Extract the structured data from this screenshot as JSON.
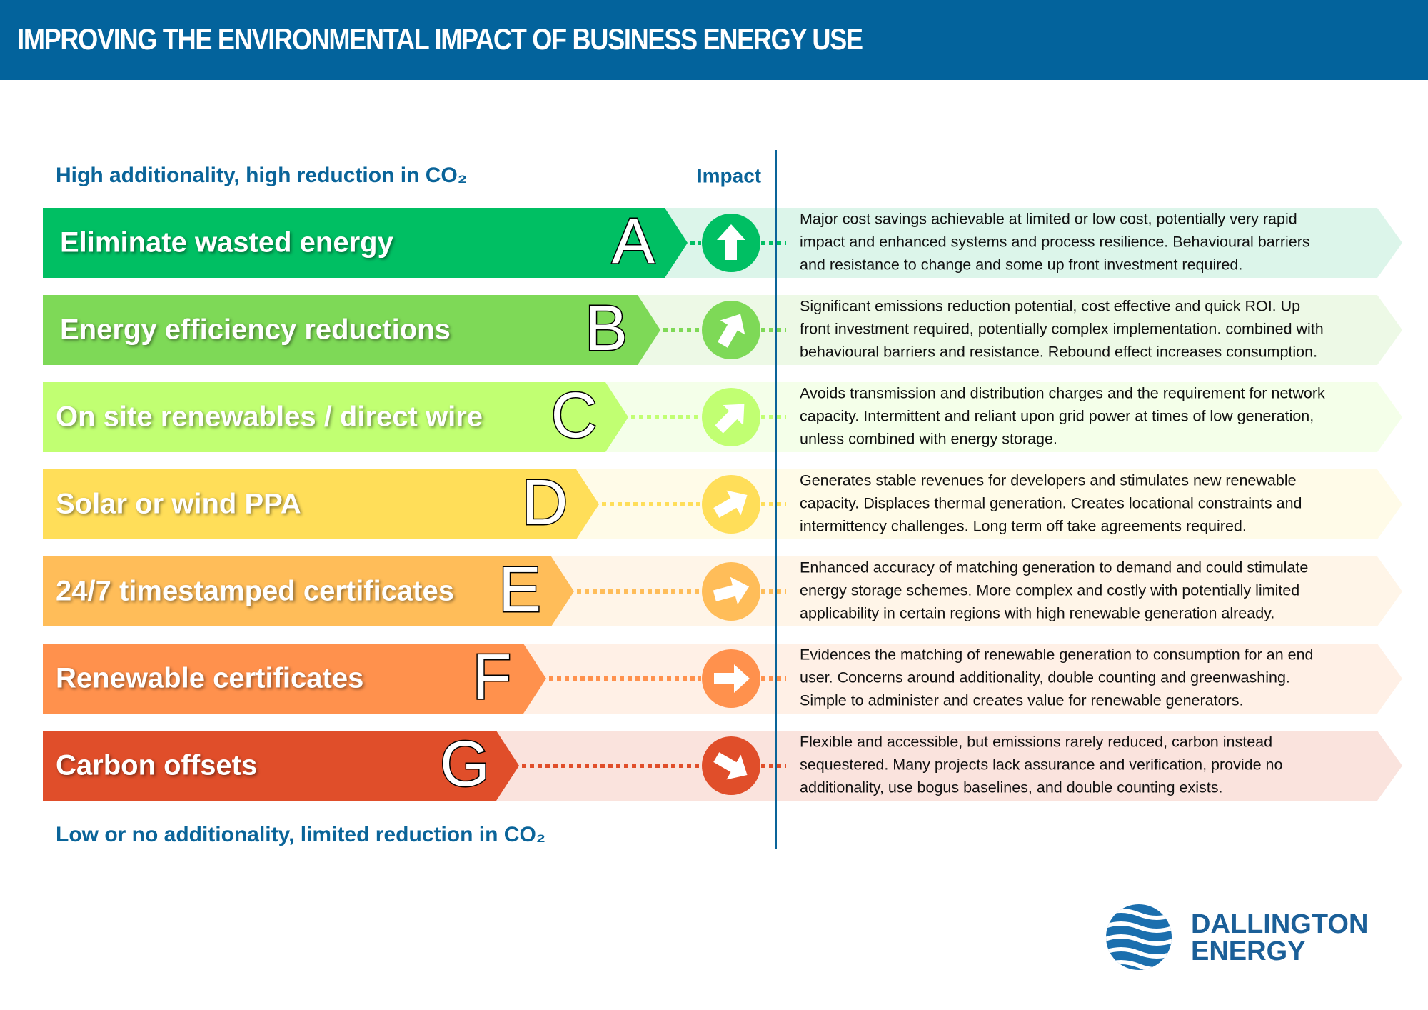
{
  "header": {
    "title": "IMPROVING THE ENVIRONMENTAL IMPACT OF BUSINESS ENERGY USE"
  },
  "top_label": "High additionality, high reduction in CO₂",
  "impact_label": "Impact",
  "bottom_label": "Low or no additionality, limited reduction in CO₂",
  "rows": [
    {
      "letter": "A",
      "label": "Eliminate wasted energy",
      "color": "#00bf63",
      "light": "#dcf5ea",
      "description": [
        "Major cost savings achievable at limited or low cost, potentially very rapid",
        "impact and enhanced systems and process resilience. Behavioural barriers",
        "and resistance to change and some up front investment required."
      ]
    },
    {
      "letter": "B",
      "label": "Energy efficiency reductions",
      "color": "#7ed957",
      "light": "#edf9e6",
      "description": [
        "Significant emissions reduction potential, cost effective and quick ROI. Up",
        "front investment required, potentially complex implementation. combined with",
        "behavioural barriers and resistance. Rebound effect increases consumption."
      ]
    },
    {
      "letter": "C",
      "label": "On site renewables / direct wire",
      "color": "#c1ff72",
      "light": "#f4ffe9",
      "description": [
        "Avoids transmission and distribution charges and the requirement for network",
        "capacity. Intermittent and reliant upon grid power at times of low generation,",
        "unless combined with energy storage."
      ]
    },
    {
      "letter": "D",
      "label": "Solar or wind PPA",
      "color": "#ffde59",
      "light": "#fffbe8",
      "description": [
        "Generates stable revenues for developers and stimulates new renewable",
        "capacity. Displaces thermal generation. Creates locational constraints and",
        "intermittency challenges. Long term off take agreements required."
      ]
    },
    {
      "letter": "E",
      "label": "24/7 timestamped certificates",
      "color": "#ffbd59",
      "light": "#fff5e8",
      "description": [
        "Enhanced accuracy of matching generation to demand and could stimulate",
        "energy storage schemes. More complex and costly with potentially limited",
        "applicability in certain regions with high renewable generation already."
      ]
    },
    {
      "letter": "F",
      "label": "Renewable certificates",
      "color": "#ff914d",
      "light": "#fff0e6",
      "description": [
        "Evidences the matching of renewable generation to consumption for an end",
        "user. Concerns around additionality, double counting and greenwashing.",
        "Simple to administer and creates value for renewable generators."
      ]
    },
    {
      "letter": "G",
      "label": "Carbon offsets",
      "color": "#e04e2a",
      "light": "#fae3dd",
      "description": [
        "Flexible and accessible, but emissions rarely reduced, carbon instead",
        "sequestered. Many projects lack assurance and verification, provide no",
        "additionality, use bogus baselines, and double counting exists."
      ]
    }
  ],
  "logo": {
    "line1": "DALLINGTON",
    "line2": "ENERGY"
  }
}
